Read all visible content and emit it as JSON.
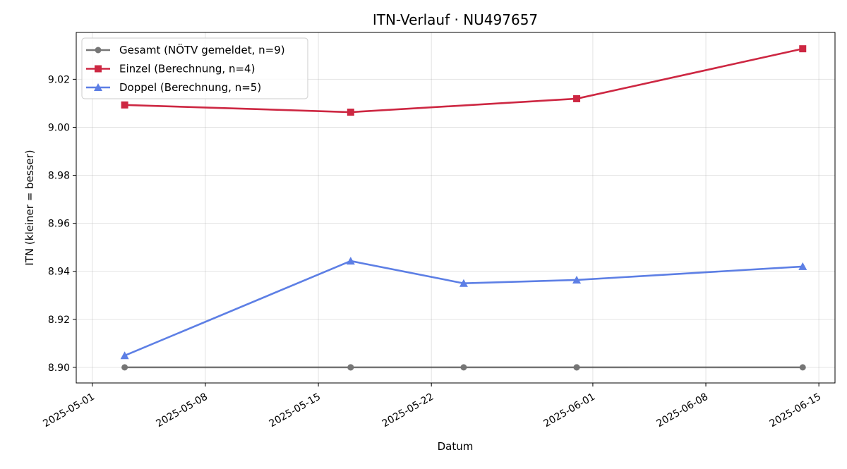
{
  "chart_data": {
    "type": "line",
    "title": "ITN-Verlauf · NU497657",
    "xlabel": "Datum",
    "ylabel": "ITN  (kleiner = besser)",
    "x_is_date": true,
    "xlim": [
      "2025-04-30",
      "2025-06-16"
    ],
    "ylim": [
      8.8935,
      9.0395
    ],
    "x_ticks": [
      "2025-05-01",
      "2025-05-08",
      "2025-05-15",
      "2025-05-22",
      "2025-06-01",
      "2025-06-08",
      "2025-06-15"
    ],
    "y_ticks": [
      8.9,
      8.92,
      8.94,
      8.96,
      8.98,
      9.0,
      9.02
    ],
    "y_tick_labels": [
      "8.90",
      "8.92",
      "8.94",
      "8.96",
      "8.98",
      "9.00",
      "9.02"
    ],
    "grid": true,
    "legend_position": "upper-left",
    "series": [
      {
        "name": "Gesamt (NÖTV gemeldet, n=9)",
        "color": "#555555",
        "marker": "circle",
        "opacity": 0.8,
        "points": [
          {
            "x": "2025-05-03",
            "y": 8.9
          },
          {
            "x": "2025-05-17",
            "y": 8.9
          },
          {
            "x": "2025-05-17",
            "y": 8.9
          },
          {
            "x": "2025-05-24",
            "y": 8.9
          },
          {
            "x": "2025-05-31",
            "y": 8.9
          },
          {
            "x": "2025-05-31",
            "y": 8.9
          },
          {
            "x": "2025-06-14",
            "y": 8.9
          }
        ]
      },
      {
        "name": "Einzel (Berechnung, n=4)",
        "color": "#c8102e",
        "marker": "square",
        "opacity": 0.9,
        "points": [
          {
            "x": "2025-05-03",
            "y": 9.0093
          },
          {
            "x": "2025-05-17",
            "y": 9.0063
          },
          {
            "x": "2025-05-31",
            "y": 9.0119
          },
          {
            "x": "2025-06-14",
            "y": 9.0327
          }
        ]
      },
      {
        "name": "Doppel (Berechnung, n=5)",
        "color": "#4169e1",
        "marker": "triangle",
        "opacity": 0.85,
        "points": [
          {
            "x": "2025-05-03",
            "y": 8.9049
          },
          {
            "x": "2025-05-17",
            "y": 8.9443
          },
          {
            "x": "2025-05-24",
            "y": 8.935
          },
          {
            "x": "2025-05-31",
            "y": 8.9364
          },
          {
            "x": "2025-06-14",
            "y": 8.942
          }
        ]
      }
    ]
  }
}
